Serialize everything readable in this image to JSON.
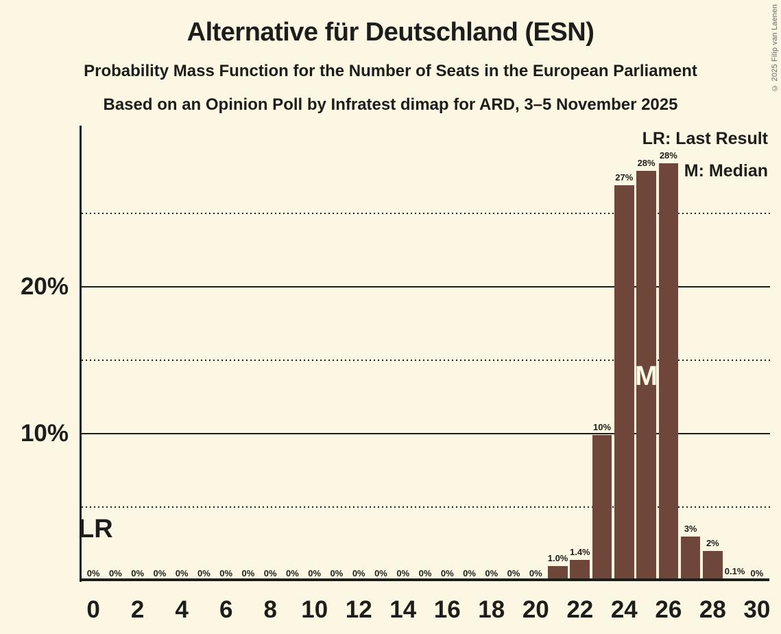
{
  "header": {
    "title": "Alternative für Deutschland (ESN)",
    "subtitle1": "Probability Mass Function for the Number of Seats in the European Parliament",
    "subtitle2": "Based on an Opinion Poll by Infratest dimap for ARD, 3–5 November 2025"
  },
  "legend": {
    "last_result": "LR: Last Result",
    "median": "M: Median"
  },
  "copyright": "© 2025 Filip van Laenen",
  "colors": {
    "background": "#fcf7e2",
    "bar": "#6f473a",
    "text": "#1d1d1b",
    "median_text": "#fcf7e2",
    "copyright_text": "#666666"
  },
  "chart_data": {
    "type": "bar",
    "title": "Probability Mass Function for the Number of Seats in the European Parliament",
    "categories": [
      0,
      1,
      2,
      3,
      4,
      5,
      6,
      7,
      8,
      9,
      10,
      11,
      12,
      13,
      14,
      15,
      16,
      17,
      18,
      19,
      20,
      21,
      22,
      23,
      24,
      25,
      26,
      27,
      28,
      29,
      30
    ],
    "values": [
      0,
      0,
      0,
      0,
      0,
      0,
      0,
      0,
      0,
      0,
      0,
      0,
      0,
      0,
      0,
      0,
      0,
      0,
      0,
      0,
      0,
      1.0,
      1.4,
      10,
      27,
      28,
      28,
      3,
      2,
      0.1,
      0
    ],
    "bar_labels": [
      "0%",
      "0%",
      "0%",
      "0%",
      "0%",
      "0%",
      "0%",
      "0%",
      "0%",
      "0%",
      "0%",
      "0%",
      "0%",
      "0%",
      "0%",
      "0%",
      "0%",
      "0%",
      "0%",
      "0%",
      "0%",
      "1.0%",
      "1.4%",
      "10%",
      "27%",
      "28%",
      "28%",
      "3%",
      "2%",
      "0.1%",
      "0%"
    ],
    "plot_values": [
      0,
      0,
      0,
      0,
      0,
      0,
      0,
      0,
      0,
      0,
      0,
      0,
      0,
      0,
      0,
      0,
      0,
      0,
      0,
      0,
      0,
      1.0,
      1.4,
      9.9,
      26.9,
      27.9,
      28.4,
      3,
      2,
      0.1,
      0
    ],
    "median_seat": 25,
    "median_label": "M",
    "last_result_label": "LR",
    "x_ticks": [
      0,
      2,
      4,
      6,
      8,
      10,
      12,
      14,
      16,
      18,
      20,
      22,
      24,
      26,
      28,
      30
    ],
    "y_ticks": [
      {
        "value": 10,
        "label": "10%"
      },
      {
        "value": 20,
        "label": "20%"
      }
    ],
    "y_gridlines_solid": [
      10,
      20
    ],
    "y_gridlines_dotted": [
      5,
      15,
      25
    ],
    "ylim": [
      0,
      30.9
    ],
    "grid": true,
    "legend_position": "top-right"
  }
}
